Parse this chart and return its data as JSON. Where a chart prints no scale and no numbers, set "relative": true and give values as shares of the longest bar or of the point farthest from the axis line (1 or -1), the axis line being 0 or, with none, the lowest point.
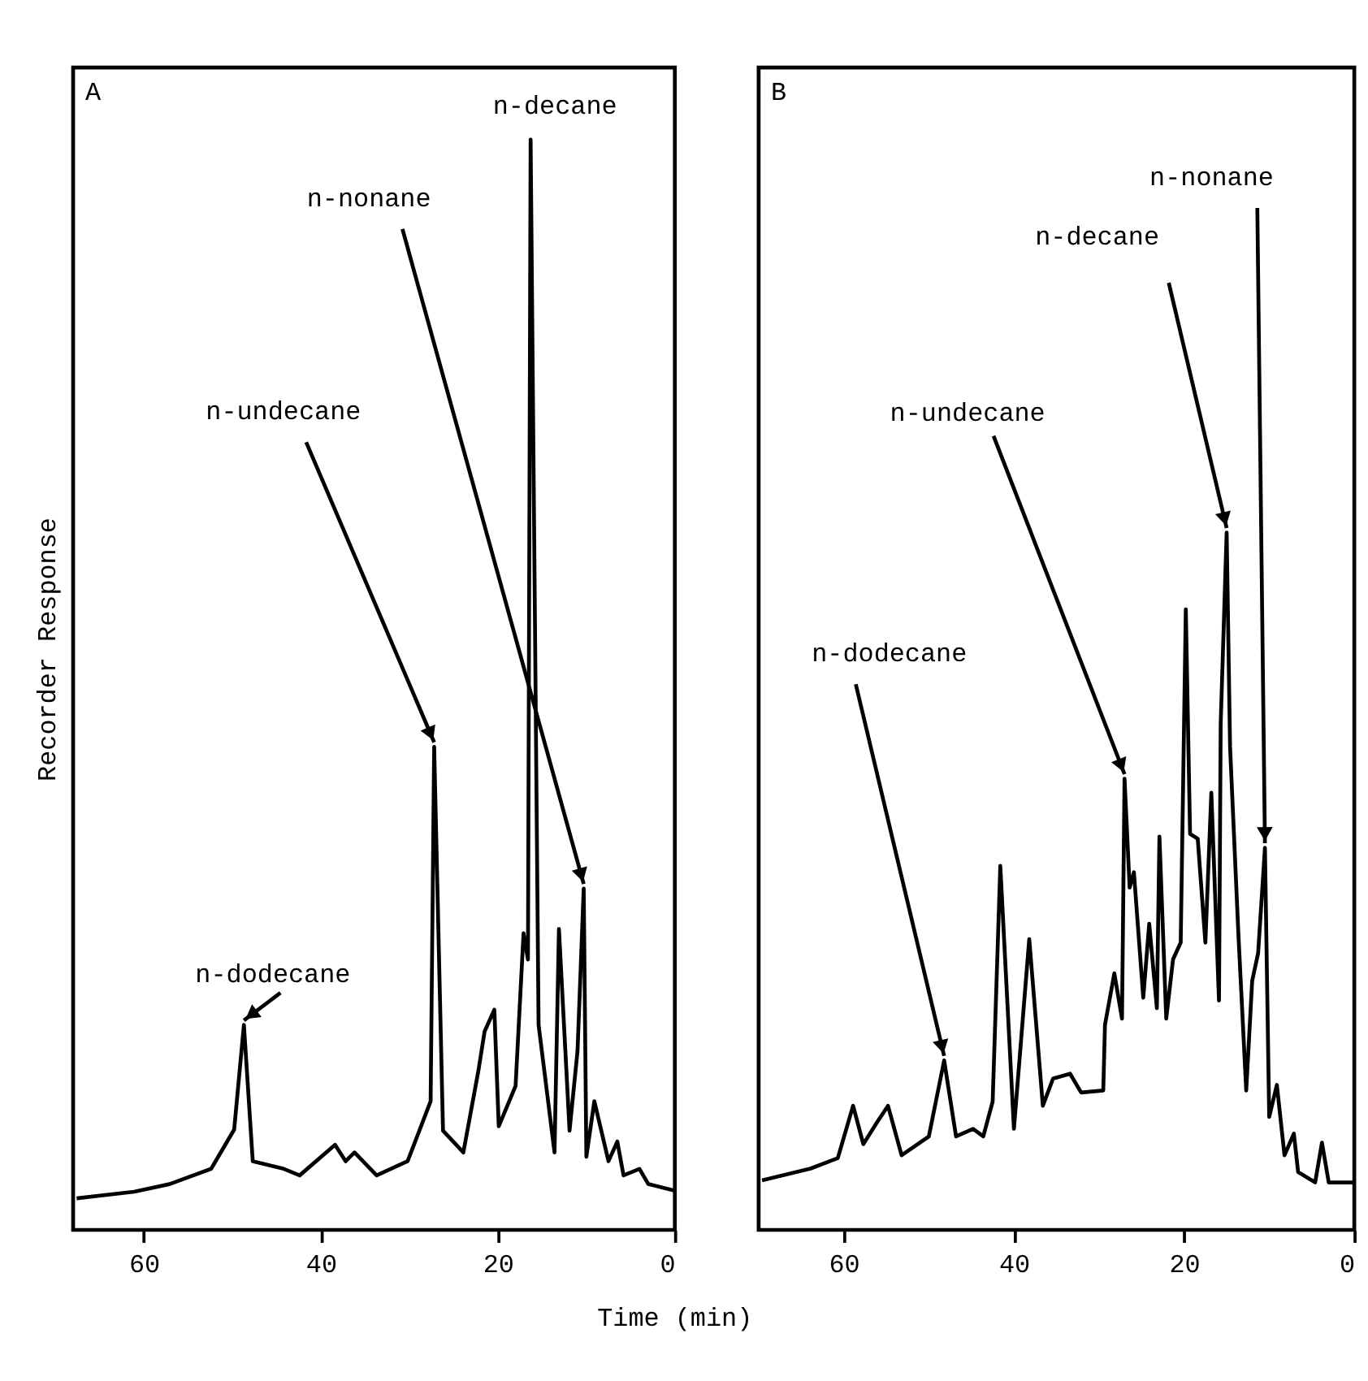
{
  "chart_data": [
    {
      "type": "line",
      "title": "A",
      "xlabel": "Time (min)",
      "ylabel": "Recorder Response",
      "relative": true,
      "xlim": [
        68,
        0
      ],
      "xticks": [
        60,
        40,
        20,
        0
      ],
      "tick_labels": "x",
      "series": [
        {
          "color": "#000000",
          "x": [
            67.6,
            61.1,
            57.1,
            52.4,
            49.8,
            48.7,
            47.7,
            44.2,
            42.4,
            38.4,
            37.2,
            36.2,
            33.7,
            30.2,
            27.6,
            27.2,
            26.2,
            23.9,
            22.2,
            21.5,
            20.4,
            19.9,
            18.0,
            17.1,
            16.6,
            16.3,
            15.4,
            13.6,
            13.1,
            11.9,
            11.0,
            10.3,
            10.0,
            9.1,
            7.5,
            6.5,
            5.8,
            4.0,
            3.0,
            0.0
          ],
          "values": [
            0.029,
            0.035,
            0.042,
            0.056,
            0.092,
            0.188,
            0.063,
            0.056,
            0.05,
            0.078,
            0.063,
            0.071,
            0.05,
            0.063,
            0.118,
            0.443,
            0.091,
            0.071,
            0.146,
            0.182,
            0.202,
            0.095,
            0.132,
            0.272,
            0.248,
            1.0,
            0.188,
            0.071,
            0.276,
            0.091,
            0.164,
            0.313,
            0.067,
            0.118,
            0.063,
            0.081,
            0.05,
            0.056,
            0.042,
            0.036
          ]
        }
      ],
      "annotations": [
        {
          "text": "n-decane",
          "x": 16.3,
          "y": 1.0
        },
        {
          "text": "n-nonane",
          "x": 10.3,
          "y": 0.313
        },
        {
          "text": "n-undecane",
          "x": 27.2,
          "y": 0.443
        },
        {
          "text": "n-dodecane",
          "x": 48.7,
          "y": 0.188
        }
      ]
    },
    {
      "type": "line",
      "title": "B",
      "relative": true,
      "xlim": [
        70,
        0
      ],
      "xticks": [
        60,
        40,
        20,
        0
      ],
      "tick_labels": "x",
      "series": [
        {
          "color": "#000000",
          "x": [
            69.6,
            63.9,
            60.7,
            58.9,
            57.7,
            56.1,
            54.8,
            53.2,
            50.0,
            48.2,
            46.8,
            44.8,
            43.6,
            42.5,
            41.6,
            40.0,
            38.2,
            36.6,
            35.4,
            33.4,
            32.1,
            29.5,
            29.3,
            28.2,
            27.3,
            27.0,
            26.4,
            25.9,
            24.8,
            24.1,
            23.2,
            22.9,
            22.1,
            21.3,
            20.4,
            19.8,
            19.3,
            18.4,
            17.5,
            16.8,
            15.9,
            15.7,
            15.0,
            14.6,
            13.6,
            12.7,
            12.0,
            11.3,
            10.5,
            10.0,
            9.1,
            8.2,
            7.1,
            6.6,
            4.6,
            3.8,
            3.0,
            0.0
          ],
          "values": [
            0.071,
            0.088,
            0.103,
            0.178,
            0.123,
            0.154,
            0.178,
            0.107,
            0.134,
            0.243,
            0.134,
            0.145,
            0.134,
            0.184,
            0.522,
            0.145,
            0.417,
            0.178,
            0.217,
            0.224,
            0.197,
            0.2,
            0.294,
            0.368,
            0.303,
            0.647,
            0.491,
            0.513,
            0.333,
            0.439,
            0.318,
            0.564,
            0.303,
            0.388,
            0.412,
            0.89,
            0.568,
            0.561,
            0.412,
            0.627,
            0.329,
            0.726,
            1.0,
            0.693,
            0.419,
            0.2,
            0.357,
            0.397,
            0.548,
            0.162,
            0.208,
            0.107,
            0.138,
            0.083,
            0.068,
            0.125,
            0.068,
            0.068
          ]
        }
      ],
      "annotations": [
        {
          "text": "n-dodecane",
          "x": 48.2,
          "y": 0.243
        },
        {
          "text": "n-undecane",
          "x": 27.0,
          "y": 0.647
        },
        {
          "text": "n-decane",
          "x": 15.0,
          "y": 1.0
        },
        {
          "text": "n-nonane",
          "x": 10.5,
          "y": 0.548
        }
      ]
    }
  ]
}
